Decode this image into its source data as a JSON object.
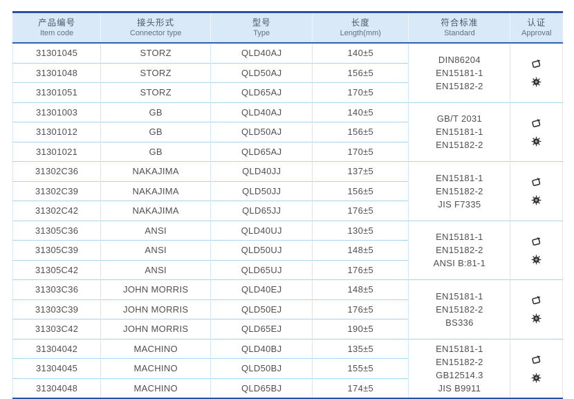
{
  "table": {
    "headers": [
      {
        "zh": "产品编号",
        "en": "Item code"
      },
      {
        "zh": "接头形式",
        "en": "Connector type"
      },
      {
        "zh": "型号",
        "en": "Type"
      },
      {
        "zh": "长度",
        "en": "Length(mm)"
      },
      {
        "zh": "符合标准",
        "en": "Standard"
      },
      {
        "zh": "认证",
        "en": "Approval"
      }
    ],
    "groups": [
      {
        "standards": [
          "DIN86204",
          "EN15181-1",
          "EN15182-2"
        ],
        "rows": [
          {
            "code": "31301045",
            "connector": "STORZ",
            "type": "QLD40AJ",
            "length": "140±5"
          },
          {
            "code": "31301048",
            "connector": "STORZ",
            "type": "QLD50AJ",
            "length": "156±5"
          },
          {
            "code": "31301051",
            "connector": "STORZ",
            "type": "QLD65AJ",
            "length": "170±5"
          }
        ]
      },
      {
        "standards": [
          "GB/T 2031",
          "EN15181-1",
          "EN15182-2"
        ],
        "rows": [
          {
            "code": "31301003",
            "connector": "GB",
            "type": "QLD40AJ",
            "length": "140±5"
          },
          {
            "code": "31301012",
            "connector": "GB",
            "type": "QLD50AJ",
            "length": "156±5"
          },
          {
            "code": "31301021",
            "connector": "GB",
            "type": "QLD65AJ",
            "length": "170±5"
          }
        ]
      },
      {
        "standards": [
          "EN15181-1",
          "EN15182-2",
          "JIS F7335"
        ],
        "rows": [
          {
            "code": "31302C36",
            "connector": "NAKAJIMA",
            "type": "QLD40JJ",
            "length": "137±5"
          },
          {
            "code": "31302C39",
            "connector": "NAKAJIMA",
            "type": "QLD50JJ",
            "length": "156±5"
          },
          {
            "code": "31302C42",
            "connector": "NAKAJIMA",
            "type": "QLD65JJ",
            "length": "176±5"
          }
        ]
      },
      {
        "standards": [
          "EN15181-1",
          "EN15182-2",
          "ANSI B:81-1"
        ],
        "rows": [
          {
            "code": "31305C36",
            "connector": "ANSI",
            "type": "QLD40UJ",
            "length": "130±5"
          },
          {
            "code": "31305C39",
            "connector": "ANSI",
            "type": "QLD50UJ",
            "length": "148±5"
          },
          {
            "code": "31305C42",
            "connector": "ANSI",
            "type": "QLD65UJ",
            "length": "176±5"
          }
        ]
      },
      {
        "standards": [
          "EN15181-1",
          "EN15182-2",
          "BS336"
        ],
        "rows": [
          {
            "code": "31303C36",
            "connector": "JOHN MORRIS",
            "type": "QLD40EJ",
            "length": "148±5"
          },
          {
            "code": "31303C39",
            "connector": "JOHN MORRIS",
            "type": "QLD50EJ",
            "length": "176±5"
          },
          {
            "code": "31303C42",
            "connector": "JOHN MORRIS",
            "type": "QLD65EJ",
            "length": "190±5"
          }
        ]
      },
      {
        "standards": [
          "EN15181-1",
          "EN15182-2",
          "GB12514.3",
          "JIS B9911"
        ],
        "rows": [
          {
            "code": "31304042",
            "connector": "MACHINO",
            "type": "QLD40BJ",
            "length": "135±5"
          },
          {
            "code": "31304045",
            "connector": "MACHINO",
            "type": "QLD50BJ",
            "length": "155±5"
          },
          {
            "code": "31304048",
            "connector": "MACHINO",
            "type": "QLD65BJ",
            "length": "174±5"
          }
        ]
      }
    ],
    "approval_icons": [
      {
        "name": "certificate-stamp-icon"
      },
      {
        "name": "seal-gear-icon"
      }
    ]
  },
  "colors": {
    "header_bg": "#d9e9f7",
    "border_navy": "#2253a4",
    "header_rule": "#2b62b2",
    "grid_light_blue": "#a9d5f1",
    "body_text": "#4f4f4f",
    "header_text": "#48596c",
    "icon_dark": "#333333"
  }
}
